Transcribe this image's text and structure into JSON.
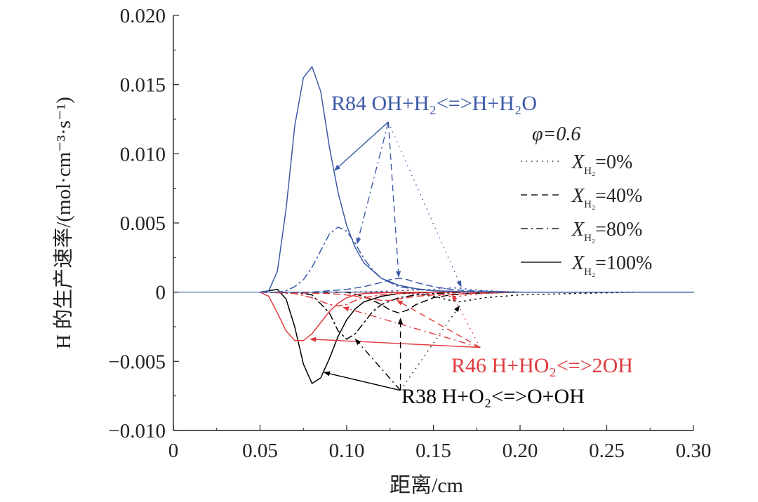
{
  "chart_data": {
    "type": "line",
    "xlabel": "距离/cm",
    "ylabel": "H 的生产速率/(mol·cm⁻³·s⁻¹)",
    "xlim": [
      0,
      0.3
    ],
    "ylim": [
      -0.01,
      0.02
    ],
    "xticks": [
      0,
      0.05,
      0.1,
      0.15,
      0.2,
      0.25,
      0.3
    ],
    "xtick_labels": [
      "0",
      "0.05",
      "0.10",
      "0.15",
      "0.20",
      "0.25",
      "0.30"
    ],
    "yticks": [
      -0.01,
      -0.005,
      0,
      0.005,
      0.01,
      0.015,
      0.02
    ],
    "ytick_labels": [
      "−0.010",
      "−0.005",
      "0",
      "0.005",
      "0.010",
      "0.015",
      "0.020"
    ],
    "grid": false,
    "legend": {
      "position": "right",
      "title": "φ=0.6",
      "entries": [
        {
          "style": "dotted",
          "var": "X",
          "sub": "H₂",
          "value": "=0%"
        },
        {
          "style": "dashed",
          "var": "X",
          "sub": "H₂",
          "value": "=40%"
        },
        {
          "style": "dashdot",
          "var": "X",
          "sub": "H₂",
          "value": "=80%"
        },
        {
          "style": "solid",
          "var": "X",
          "sub": "H₂",
          "value": "=100%"
        }
      ]
    },
    "reactions": [
      {
        "id": "R84",
        "color": "#3c5aa6",
        "label": "R84 OH+H₂<=>H+H₂O"
      },
      {
        "id": "R46",
        "color": "#e03a3e",
        "label": "R46 H+HO₂<=>2OH"
      },
      {
        "id": "R38",
        "color": "#000000",
        "label": "R38 H+O₂<=>O+OH"
      }
    ],
    "series": [
      {
        "reaction": "R84",
        "style": "solid",
        "x": [
          0.05,
          0.055,
          0.06,
          0.065,
          0.07,
          0.075,
          0.08,
          0.085,
          0.09,
          0.095,
          0.1,
          0.105,
          0.11,
          0.12,
          0.13,
          0.14,
          0.15,
          0.17,
          0.2,
          0.3
        ],
        "y": [
          0,
          0.0001,
          0.0015,
          0.006,
          0.012,
          0.0155,
          0.0163,
          0.0145,
          0.0105,
          0.0072,
          0.0048,
          0.0032,
          0.0021,
          0.001,
          0.0005,
          0.00025,
          0.0001,
          3e-05,
          0,
          0
        ]
      },
      {
        "reaction": "R84",
        "style": "dashdot",
        "x": [
          0.05,
          0.06,
          0.065,
          0.07,
          0.075,
          0.08,
          0.085,
          0.09,
          0.095,
          0.1,
          0.105,
          0.11,
          0.115,
          0.12,
          0.13,
          0.14,
          0.15,
          0.17,
          0.2,
          0.3
        ],
        "y": [
          0,
          0,
          0.0001,
          0.0004,
          0.0009,
          0.0018,
          0.003,
          0.0042,
          0.0047,
          0.0044,
          0.0035,
          0.0024,
          0.0016,
          0.001,
          0.0004,
          0.0002,
          0.0001,
          3e-05,
          0,
          0
        ]
      },
      {
        "reaction": "R84",
        "style": "dashed",
        "x": [
          0.05,
          0.08,
          0.09,
          0.1,
          0.11,
          0.12,
          0.125,
          0.13,
          0.135,
          0.14,
          0.15,
          0.16,
          0.17,
          0.2,
          0.3
        ],
        "y": [
          0,
          0,
          0.0001,
          0.0002,
          0.0004,
          0.0007,
          0.0009,
          0.001,
          0.0009,
          0.0007,
          0.0004,
          0.0002,
          0.0001,
          0,
          0
        ]
      },
      {
        "reaction": "R84",
        "style": "dotted",
        "x": [
          0.05,
          0.1,
          0.13,
          0.15,
          0.16,
          0.165,
          0.17,
          0.18,
          0.2,
          0.3
        ],
        "y": [
          0,
          0,
          0.0001,
          0.0002,
          0.0003,
          0.0003,
          0.0002,
          0.0001,
          0,
          0
        ]
      },
      {
        "reaction": "R46",
        "style": "solid",
        "x": [
          0.05,
          0.055,
          0.06,
          0.065,
          0.07,
          0.075,
          0.08,
          0.085,
          0.09,
          0.095,
          0.1,
          0.105,
          0.11,
          0.12,
          0.13,
          0.15,
          0.2,
          0.3
        ],
        "y": [
          0,
          -0.0003,
          -0.0015,
          -0.0028,
          -0.0035,
          -0.0035,
          -0.003,
          -0.0022,
          -0.0014,
          -0.0008,
          -0.0004,
          -0.0002,
          -0.0001,
          -5e-05,
          0,
          0,
          0,
          0
        ]
      },
      {
        "reaction": "R46",
        "style": "dashdot",
        "x": [
          0.05,
          0.07,
          0.08,
          0.09,
          0.095,
          0.1,
          0.105,
          0.11,
          0.12,
          0.13,
          0.15,
          0.2,
          0.3
        ],
        "y": [
          0,
          -0.0001,
          -0.0004,
          -0.0009,
          -0.001,
          -0.0009,
          -0.0006,
          -0.0004,
          -0.0002,
          -0.0001,
          0,
          0,
          0
        ]
      },
      {
        "reaction": "R46",
        "style": "dashed",
        "x": [
          0.05,
          0.09,
          0.1,
          0.11,
          0.12,
          0.125,
          0.13,
          0.14,
          0.15,
          0.17,
          0.2,
          0.3
        ],
        "y": [
          0,
          -0.0001,
          -0.0002,
          -0.0004,
          -0.0006,
          -0.0006,
          -0.0005,
          -0.0003,
          -0.0002,
          -0.0001,
          0,
          0
        ]
      },
      {
        "reaction": "R46",
        "style": "dotted",
        "x": [
          0.05,
          0.12,
          0.14,
          0.15,
          0.16,
          0.165,
          0.17,
          0.18,
          0.2,
          0.3
        ],
        "y": [
          0,
          0,
          -0.0001,
          -0.0002,
          -0.0003,
          -0.0003,
          -0.0002,
          -0.0001,
          0,
          0
        ]
      },
      {
        "reaction": "R38",
        "style": "solid",
        "x": [
          0.05,
          0.055,
          0.06,
          0.065,
          0.07,
          0.075,
          0.08,
          0.085,
          0.09,
          0.095,
          0.1,
          0.105,
          0.11,
          0.12,
          0.13,
          0.15,
          0.2,
          0.3
        ],
        "y": [
          0,
          0.0001,
          0.0002,
          -0.0005,
          -0.0025,
          -0.0052,
          -0.0066,
          -0.0062,
          -0.0048,
          -0.0032,
          -0.002,
          -0.0012,
          -0.0007,
          -0.0003,
          -0.0001,
          0,
          0,
          0
        ]
      },
      {
        "reaction": "R38",
        "style": "dashdot",
        "x": [
          0.05,
          0.07,
          0.08,
          0.09,
          0.095,
          0.1,
          0.105,
          0.11,
          0.115,
          0.12,
          0.13,
          0.14,
          0.15,
          0.17,
          0.2,
          0.3
        ],
        "y": [
          0,
          0,
          -0.0002,
          -0.0015,
          -0.0028,
          -0.0034,
          -0.003,
          -0.0022,
          -0.0014,
          -0.0009,
          -0.0004,
          -0.0002,
          -0.0001,
          0,
          0,
          0
        ]
      },
      {
        "reaction": "R38",
        "style": "dashed",
        "x": [
          0.05,
          0.1,
          0.11,
          0.12,
          0.125,
          0.13,
          0.135,
          0.14,
          0.15,
          0.16,
          0.17,
          0.2,
          0.3
        ],
        "y": [
          0,
          0,
          -0.0003,
          -0.0009,
          -0.0013,
          -0.0015,
          -0.0013,
          -0.0009,
          -0.0004,
          -0.0002,
          -0.0001,
          0,
          0
        ]
      },
      {
        "reaction": "R38",
        "style": "dotted",
        "x": [
          0.05,
          0.13,
          0.15,
          0.16,
          0.165,
          0.17,
          0.18,
          0.2,
          0.23,
          0.27,
          0.3
        ],
        "y": [
          0,
          0,
          -0.0003,
          -0.0006,
          -0.0007,
          -0.0006,
          -0.0004,
          -0.0002,
          -0.0001,
          0,
          0
        ]
      }
    ],
    "annotations": [
      {
        "reaction": "R84",
        "from": [
          0.124,
          0.0123
        ],
        "to": [
          [
            0.093,
            0.0088
          ],
          [
            0.106,
            0.0035
          ],
          [
            0.13,
            0.0011
          ],
          [
            0.166,
            0.0004
          ]
        ]
      },
      {
        "reaction": "R46",
        "from": [
          0.177,
          -0.004
        ],
        "to": [
          [
            0.079,
            -0.0034
          ],
          [
            0.098,
            -0.0011
          ],
          [
            0.129,
            -0.0006
          ],
          [
            0.161,
            -0.0002
          ]
        ]
      },
      {
        "reaction": "R38",
        "from": [
          0.131,
          -0.0071
        ],
        "to": [
          [
            0.087,
            -0.0058
          ],
          [
            0.105,
            -0.0034
          ],
          [
            0.131,
            -0.0019
          ],
          [
            0.165,
            -0.001
          ]
        ]
      }
    ]
  }
}
